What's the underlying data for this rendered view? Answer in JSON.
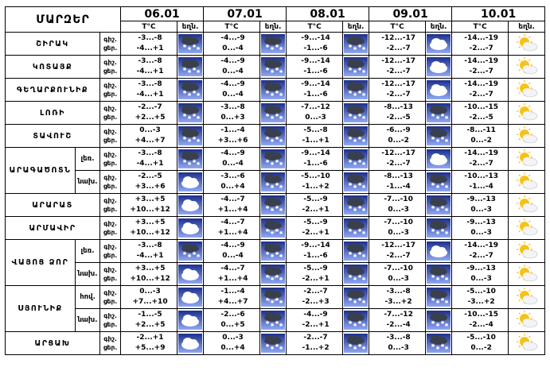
{
  "header": {
    "region_title": "ՄԱՐԶԵՐ",
    "dates": [
      "06.01",
      "07.01",
      "08.01",
      "09.01",
      "10.01"
    ],
    "temp_label": "T°C",
    "weather_label": "եղն."
  },
  "day_night": [
    "ցերեկ.",
    "գիշ."
  ],
  "rows": [
    {
      "region": "ՇԻՐԱԿ",
      "sub": "",
      "labels": [
        "գիշ.",
        "ցեր."
      ],
      "days": [
        {
          "t": [
            "-3...-8",
            "-4...+1"
          ],
          "icon": "snow-cloud"
        },
        {
          "t": [
            "-4...-9",
            "0...-4"
          ],
          "icon": "snow-cloud"
        },
        {
          "t": [
            "-9...-14",
            "-1...-6"
          ],
          "icon": "snow-cloud"
        },
        {
          "t": [
            "-12...-17",
            "-2...-7"
          ],
          "icon": "cloud"
        },
        {
          "t": [
            "-14...-19",
            "-2...-7"
          ],
          "icon": "sun-cloud"
        }
      ]
    },
    {
      "region": "ԿՈՏԱՅՔ",
      "sub": "",
      "labels": [
        "գիշ.",
        "ցեր."
      ],
      "days": [
        {
          "t": [
            "-3...-8",
            "-4...+1"
          ],
          "icon": "snow-cloud"
        },
        {
          "t": [
            "-4...-9",
            "0...-4"
          ],
          "icon": "snow-cloud"
        },
        {
          "t": [
            "-9...-14",
            "-1...-6"
          ],
          "icon": "snow-cloud"
        },
        {
          "t": [
            "-12...-17",
            "-2...-7"
          ],
          "icon": "cloud"
        },
        {
          "t": [
            "-14...-19",
            "-2...-7"
          ],
          "icon": "sun-cloud"
        }
      ]
    },
    {
      "region": "ԳԵՂԱՐՔՈՒՆԻՔ",
      "sub": "",
      "labels": [
        "գիշ.",
        "ցեր."
      ],
      "days": [
        {
          "t": [
            "-3...-8",
            "-4...+1"
          ],
          "icon": "snow-cloud"
        },
        {
          "t": [
            "-4...-9",
            "0...-4"
          ],
          "icon": "snow-cloud"
        },
        {
          "t": [
            "-9...-14",
            "-1...-6"
          ],
          "icon": "snow-cloud"
        },
        {
          "t": [
            "-12...-17",
            "-2...-7"
          ],
          "icon": "cloud"
        },
        {
          "t": [
            "-14...-19",
            "-2...-7"
          ],
          "icon": "sun-cloud"
        }
      ]
    },
    {
      "region": "ԼՈՌԻ",
      "sub": "",
      "labels": [
        "գիշ.",
        "ցեր."
      ],
      "days": [
        {
          "t": [
            "-2...-7",
            "+2...+5"
          ],
          "icon": "snow-cloud"
        },
        {
          "t": [
            "-3...-8",
            "0...+3"
          ],
          "icon": "snow-cloud"
        },
        {
          "t": [
            "-7...-12",
            "0...-3"
          ],
          "icon": "snow-cloud"
        },
        {
          "t": [
            "-8...-13",
            "-2...-5"
          ],
          "icon": "snow-cloud"
        },
        {
          "t": [
            "-10...-15",
            "-2...-5"
          ],
          "icon": "sun-cloud"
        }
      ]
    },
    {
      "region": "ՏԱՎՈՒՇ",
      "sub": "",
      "labels": [
        "գիշ.",
        "ցեր."
      ],
      "days": [
        {
          "t": [
            "0...-3",
            "+4...+7"
          ],
          "icon": "snow-cloud"
        },
        {
          "t": [
            "-1...-4",
            "+3...+6"
          ],
          "icon": "snow-cloud"
        },
        {
          "t": [
            "-5...-8",
            "-1...+1"
          ],
          "icon": "snow-cloud"
        },
        {
          "t": [
            "-6...-9",
            "0...-2"
          ],
          "icon": "snow-cloud"
        },
        {
          "t": [
            "-8...-11",
            "0...-2"
          ],
          "icon": "sun-cloud"
        }
      ]
    },
    {
      "region": "ԱՐԱԳԱԾՈՏՆ",
      "sub": "լեռ.",
      "labels": [
        "գիշ.",
        "ցեր."
      ],
      "days": [
        {
          "t": [
            "-3...-8",
            "-4...+1"
          ],
          "icon": "snow-cloud"
        },
        {
          "t": [
            "-4...-9",
            "0...-4"
          ],
          "icon": "snow-cloud"
        },
        {
          "t": [
            "-9...-14",
            "-1...-6"
          ],
          "icon": "snow-cloud"
        },
        {
          "t": [
            "-12...-17",
            "-2...-7"
          ],
          "icon": "cloud"
        },
        {
          "t": [
            "-14...-19",
            "-2...-7"
          ],
          "icon": "sun-cloud"
        }
      ]
    },
    {
      "region": "",
      "sub": "նախ.",
      "labels": [
        "գիշ.",
        "ցեր."
      ],
      "days": [
        {
          "t": [
            "-2...-5",
            "+3...+6"
          ],
          "icon": "cloud"
        },
        {
          "t": [
            "-3...-6",
            "0...+4"
          ],
          "icon": "snow-cloud"
        },
        {
          "t": [
            "-5...-10",
            "-1...+2"
          ],
          "icon": "snow-cloud"
        },
        {
          "t": [
            "-8...-13",
            "-1...-4"
          ],
          "icon": "snow-cloud"
        },
        {
          "t": [
            "-10...-13",
            "-1...-4"
          ],
          "icon": "sun-cloud"
        }
      ]
    },
    {
      "region": "ԱՐԱՐԱՏ",
      "sub": "",
      "labels": [
        "գիշ.",
        "ցեր."
      ],
      "days": [
        {
          "t": [
            "+3...+5",
            "+10...+12"
          ],
          "icon": "cloud"
        },
        {
          "t": [
            "-4...-7",
            "+1...+4"
          ],
          "icon": "snow-cloud"
        },
        {
          "t": [
            "-5...-9",
            "-2...+1"
          ],
          "icon": "snow-cloud"
        },
        {
          "t": [
            "-7...-10",
            "0...-3"
          ],
          "icon": "snow-cloud"
        },
        {
          "t": [
            "-9...-13",
            "0...-3"
          ],
          "icon": "sun-cloud"
        }
      ]
    },
    {
      "region": "ԱՐՄԱՎԻՐ",
      "sub": "",
      "labels": [
        "գիշ.",
        "ցեր."
      ],
      "days": [
        {
          "t": [
            "+3...+5",
            "+10...+12"
          ],
          "icon": "cloud"
        },
        {
          "t": [
            "-4...-7",
            "+1...+4"
          ],
          "icon": "rain-snow-cloud"
        },
        {
          "t": [
            "-5...-9",
            "-2...+1"
          ],
          "icon": "snow-cloud"
        },
        {
          "t": [
            "-7...-10",
            "0...-3"
          ],
          "icon": "snow-cloud"
        },
        {
          "t": [
            "-9...-13",
            "0...-3"
          ],
          "icon": "sun-cloud"
        }
      ]
    },
    {
      "region": "ՎԱՅՈՑ ՁՈՐ",
      "sub": "լեռ.",
      "labels": [
        "գիշ.",
        "ցեր."
      ],
      "days": [
        {
          "t": [
            "-3...-8",
            "-4...+1"
          ],
          "icon": "snow-cloud"
        },
        {
          "t": [
            "-4...-9",
            "0...-4"
          ],
          "icon": "snow-cloud"
        },
        {
          "t": [
            "-9...-14",
            "-1...-6"
          ],
          "icon": "snow-cloud"
        },
        {
          "t": [
            "-12...-17",
            "-2...-7"
          ],
          "icon": "cloud"
        },
        {
          "t": [
            "-14...-19",
            "-2...-7"
          ],
          "icon": "sun-cloud"
        }
      ]
    },
    {
      "region": "",
      "sub": "նախ.",
      "labels": [
        "գիշ.",
        "ցեր."
      ],
      "days": [
        {
          "t": [
            "+3...+5",
            "+10...+12"
          ],
          "icon": "cloud"
        },
        {
          "t": [
            "-4...-7",
            "+1...+4"
          ],
          "icon": "rain-snow-cloud"
        },
        {
          "t": [
            "-5...-9",
            "-2...+1"
          ],
          "icon": "snow-cloud"
        },
        {
          "t": [
            "-7...-10",
            "0...-3"
          ],
          "icon": "snow-cloud"
        },
        {
          "t": [
            "-9...-13",
            "0...-3"
          ],
          "icon": "sun-cloud"
        }
      ]
    },
    {
      "region": "ՍՅՈՒՆԻՔ",
      "sub": "հով.",
      "labels": [
        "գիշ.",
        "ցեր."
      ],
      "days": [
        {
          "t": [
            "0...-3",
            "+7...+10"
          ],
          "icon": "cloud"
        },
        {
          "t": [
            "-1...-4",
            "+4...+7"
          ],
          "icon": "rain-snow-cloud"
        },
        {
          "t": [
            "-2...-7",
            "-2...+3"
          ],
          "icon": "snow-cloud"
        },
        {
          "t": [
            "-3...-8",
            "-3...+2"
          ],
          "icon": "snow-cloud"
        },
        {
          "t": [
            "-5...-10",
            "-3...+2"
          ],
          "icon": "sun-cloud"
        }
      ]
    },
    {
      "region": "",
      "sub": "նախ.",
      "labels": [
        "գիշ.",
        "ցեր."
      ],
      "days": [
        {
          "t": [
            "-1...-5",
            "+2...+5"
          ],
          "icon": "cloud"
        },
        {
          "t": [
            "-2...-6",
            "0...+5"
          ],
          "icon": "snow-cloud"
        },
        {
          "t": [
            "-4...-9",
            "-2...+1"
          ],
          "icon": "snow-cloud"
        },
        {
          "t": [
            "-7...-12",
            "-2...-4"
          ],
          "icon": "snow-cloud"
        },
        {
          "t": [
            "-10...-15",
            "-2...-4"
          ],
          "icon": "sun-cloud"
        }
      ]
    },
    {
      "region": "ԱՐՑԱԽ",
      "sub": "",
      "labels": [
        "գիշ.",
        "ցեր."
      ],
      "days": [
        {
          "t": [
            "-2...+1",
            "+5...+9"
          ],
          "icon": "cloud"
        },
        {
          "t": [
            "0...-3",
            "0...+4"
          ],
          "icon": "snow-cloud"
        },
        {
          "t": [
            "-2...-7",
            "-1...+2"
          ],
          "icon": "snow-cloud"
        },
        {
          "t": [
            "-3...-8",
            "0...-3"
          ],
          "icon": "snow-cloud"
        },
        {
          "t": [
            "-5...-10",
            "0...-2"
          ],
          "icon": "sun-cloud"
        }
      ]
    }
  ],
  "colors": {
    "icon_bg_top": "#1c2f8e",
    "icon_bg_bottom": "#8fa7f2",
    "cloud_white": "#ffffff",
    "cloud_dark": "#3a3f4d",
    "sun": "#f6c21a"
  }
}
